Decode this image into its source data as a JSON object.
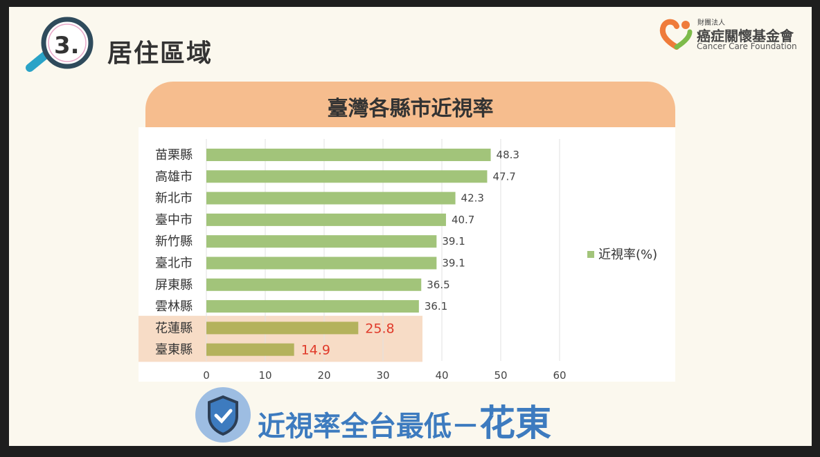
{
  "header": {
    "section_number": "3.",
    "section_title": "居住區域"
  },
  "logo": {
    "small": "財團法人",
    "name_cn": "癌症關懷基金會",
    "name_en": "Cancer Care Foundation"
  },
  "chart_data": {
    "type": "bar",
    "orientation": "horizontal",
    "title": "臺灣各縣市近視率",
    "categories": [
      "苗栗縣",
      "高雄市",
      "新北市",
      "臺中市",
      "新竹縣",
      "臺北市",
      "屏東縣",
      "雲林縣",
      "花蓮縣",
      "臺東縣"
    ],
    "series": [
      {
        "name": "近視率(%)",
        "values": [
          48.3,
          47.7,
          42.3,
          40.7,
          39.1,
          39.1,
          36.5,
          36.1,
          25.8,
          14.9
        ]
      }
    ],
    "xlim": [
      0,
      60
    ],
    "xticks": [
      0,
      10,
      20,
      30,
      40,
      50,
      60
    ],
    "grid": true,
    "legend": "right",
    "highlighted": [
      "花蓮縣",
      "臺東縣"
    ],
    "colors": {
      "bar": "#a2c47a",
      "highlight_bar": "#b4b25c",
      "highlight_bg": "#f7dcc6",
      "highlight_label": "#e03a2a",
      "label": "#444444"
    }
  },
  "footer": {
    "text": "近視率全台最低－",
    "emphasis": "花東"
  }
}
